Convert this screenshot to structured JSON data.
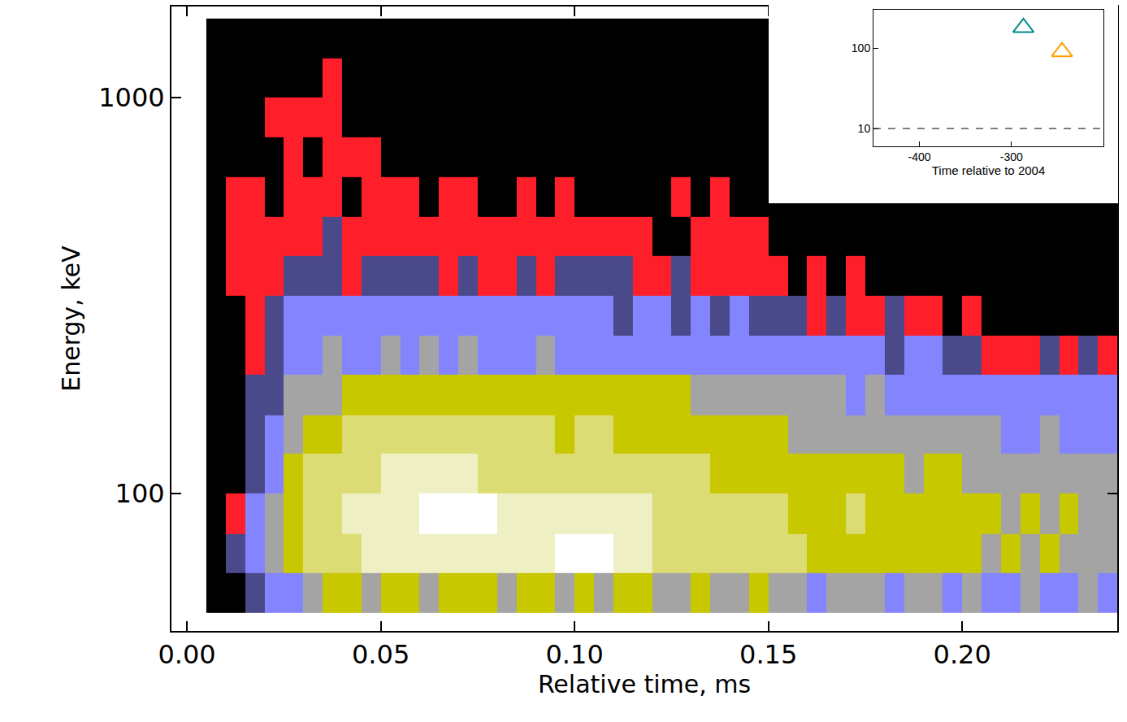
{
  "chart_data": [
    {
      "type": "heatmap",
      "x_label": "Relative time, ms",
      "y_label": "Energy, keV",
      "log": "y",
      "grid": false,
      "xlim": [
        -0.004,
        0.24
      ],
      "ylim": [
        45,
        1700
      ],
      "xticks": [
        {
          "value": 0,
          "label": "0.00"
        },
        {
          "value": 0.05,
          "label": "0.05"
        },
        {
          "value": 0.1,
          "label": "0.10"
        },
        {
          "value": 0.15,
          "label": "0.15"
        },
        {
          "value": 0.2,
          "label": "0.20"
        }
      ],
      "yticks": [
        100,
        1000
      ],
      "x_bins": [
        0.005,
        0.01,
        0.015,
        0.02,
        0.025,
        0.03,
        0.035,
        0.04,
        0.045,
        0.05,
        0.055,
        0.06,
        0.065,
        0.07,
        0.075,
        0.08,
        0.085,
        0.09,
        0.095,
        0.1,
        0.105,
        0.11,
        0.115,
        0.12,
        0.125,
        0.13,
        0.135,
        0.14,
        0.145,
        0.15,
        0.155,
        0.16,
        0.165,
        0.17,
        0.175,
        0.18,
        0.185,
        0.19,
        0.195,
        0.2,
        0.205,
        0.21,
        0.215,
        0.22,
        0.225,
        0.23,
        0.235,
        0.24
      ],
      "y_bins": [
        50,
        63,
        79,
        100,
        126,
        158,
        200,
        251,
        316,
        398,
        501,
        631,
        794,
        1000,
        1259,
        1585
      ],
      "cells": [
        [
          0,
          0,
          2,
          3,
          3,
          4,
          5,
          5,
          4,
          5,
          5,
          4,
          5,
          5,
          5,
          4,
          5,
          5,
          4,
          5,
          4,
          5,
          5,
          4,
          4,
          5,
          4,
          4,
          5,
          4,
          4,
          3,
          4,
          4,
          4,
          3,
          4,
          4,
          3,
          4,
          3,
          3,
          4,
          3,
          3,
          4,
          3
        ],
        [
          0,
          2,
          3,
          4,
          5,
          6,
          6,
          6,
          7,
          7,
          7,
          7,
          7,
          7,
          7,
          7,
          7,
          7,
          8,
          8,
          8,
          7,
          7,
          6,
          6,
          6,
          6,
          6,
          6,
          6,
          6,
          5,
          5,
          5,
          5,
          5,
          5,
          5,
          5,
          5,
          4,
          5,
          4,
          5,
          4,
          4,
          4
        ],
        [
          0,
          1,
          3,
          4,
          5,
          6,
          6,
          7,
          7,
          7,
          7,
          8,
          8,
          8,
          8,
          7,
          7,
          7,
          7,
          7,
          7,
          7,
          7,
          6,
          6,
          6,
          6,
          6,
          6,
          6,
          5,
          5,
          5,
          6,
          5,
          5,
          5,
          5,
          5,
          5,
          5,
          4,
          5,
          4,
          5,
          4,
          4
        ],
        [
          0,
          0,
          2,
          3,
          5,
          6,
          6,
          6,
          6,
          7,
          7,
          7,
          7,
          7,
          6,
          6,
          6,
          6,
          6,
          6,
          6,
          6,
          6,
          6,
          6,
          6,
          5,
          5,
          5,
          5,
          5,
          5,
          5,
          5,
          5,
          5,
          4,
          5,
          5,
          4,
          4,
          4,
          4,
          4,
          4,
          4,
          4
        ],
        [
          0,
          0,
          2,
          3,
          4,
          5,
          5,
          6,
          6,
          6,
          6,
          6,
          6,
          6,
          6,
          6,
          6,
          6,
          5,
          6,
          6,
          5,
          5,
          5,
          5,
          5,
          5,
          5,
          5,
          5,
          4,
          4,
          4,
          4,
          4,
          4,
          4,
          4,
          4,
          4,
          4,
          3,
          3,
          4,
          3,
          3,
          3
        ],
        [
          0,
          0,
          2,
          2,
          4,
          4,
          4,
          5,
          5,
          5,
          5,
          5,
          5,
          5,
          5,
          5,
          5,
          5,
          5,
          5,
          5,
          5,
          5,
          5,
          5,
          4,
          4,
          4,
          4,
          4,
          4,
          4,
          4,
          3,
          4,
          3,
          3,
          3,
          3,
          3,
          3,
          3,
          3,
          3,
          3,
          3,
          3
        ],
        [
          0,
          0,
          1,
          2,
          3,
          3,
          4,
          3,
          3,
          4,
          3,
          4,
          3,
          4,
          3,
          3,
          3,
          4,
          3,
          3,
          3,
          3,
          3,
          3,
          3,
          3,
          3,
          3,
          3,
          3,
          3,
          3,
          3,
          3,
          3,
          2,
          3,
          3,
          2,
          2,
          1,
          1,
          1,
          2,
          1,
          2,
          1
        ],
        [
          0,
          0,
          1,
          2,
          3,
          3,
          3,
          3,
          3,
          3,
          3,
          3,
          3,
          3,
          3,
          3,
          3,
          3,
          3,
          3,
          3,
          2,
          3,
          3,
          2,
          3,
          2,
          3,
          2,
          2,
          2,
          1,
          2,
          1,
          1,
          2,
          1,
          1,
          0,
          1,
          0,
          0,
          0,
          0,
          0,
          0,
          0
        ],
        [
          0,
          1,
          1,
          1,
          2,
          2,
          2,
          1,
          2,
          2,
          2,
          2,
          1,
          2,
          1,
          1,
          2,
          1,
          2,
          2,
          2,
          2,
          1,
          1,
          2,
          1,
          1,
          1,
          1,
          1,
          0,
          1,
          0,
          1,
          0,
          0,
          0,
          0,
          0,
          0,
          0,
          0,
          0,
          0,
          0,
          0,
          0
        ],
        [
          0,
          1,
          1,
          1,
          1,
          1,
          2,
          1,
          1,
          1,
          1,
          1,
          1,
          1,
          1,
          1,
          1,
          1,
          1,
          1,
          1,
          1,
          1,
          0,
          0,
          1,
          1,
          1,
          1,
          0,
          0,
          0,
          0,
          0,
          0,
          0,
          0,
          0,
          0,
          0,
          0,
          0,
          0,
          0,
          0,
          0,
          0
        ],
        [
          0,
          1,
          1,
          0,
          1,
          1,
          1,
          0,
          1,
          1,
          1,
          0,
          1,
          1,
          0,
          0,
          1,
          0,
          1,
          0,
          0,
          0,
          0,
          0,
          1,
          0,
          1,
          0,
          0,
          0,
          0,
          0,
          0,
          0,
          0,
          0,
          0,
          0,
          0,
          0,
          0,
          0,
          0,
          0,
          0,
          0,
          0
        ],
        [
          0,
          0,
          0,
          0,
          1,
          0,
          1,
          1,
          1,
          0,
          0,
          0,
          0,
          0,
          0,
          0,
          0,
          0,
          0,
          0,
          0,
          0,
          0,
          0,
          0,
          0,
          0,
          0,
          0,
          0,
          0,
          0,
          0,
          0,
          0,
          0,
          0,
          0,
          0,
          0,
          0,
          0,
          0,
          0,
          0,
          0,
          0
        ],
        [
          0,
          0,
          0,
          1,
          1,
          1,
          1,
          0,
          0,
          0,
          0,
          0,
          0,
          0,
          0,
          0,
          0,
          0,
          0,
          0,
          0,
          0,
          0,
          0,
          0,
          0,
          0,
          0,
          0,
          0,
          0,
          0,
          0,
          0,
          0,
          0,
          0,
          0,
          0,
          0,
          0,
          0,
          0,
          0,
          0,
          0,
          0
        ],
        [
          0,
          0,
          0,
          0,
          0,
          0,
          1,
          0,
          0,
          0,
          0,
          0,
          0,
          0,
          0,
          0,
          0,
          0,
          0,
          0,
          0,
          0,
          0,
          0,
          0,
          0,
          0,
          0,
          0,
          0,
          0,
          0,
          0,
          0,
          0,
          0,
          0,
          0,
          0,
          0,
          0,
          0,
          0,
          0,
          0,
          0,
          0
        ],
        [
          0,
          0,
          0,
          0,
          0,
          0,
          0,
          0,
          0,
          0,
          0,
          0,
          0,
          0,
          0,
          0,
          0,
          0,
          0,
          0,
          0,
          0,
          0,
          0,
          0,
          0,
          0,
          0,
          0,
          0,
          0,
          0,
          0,
          0,
          0,
          0,
          0,
          0,
          0,
          0,
          0,
          0,
          0,
          0,
          0,
          0,
          0
        ]
      ]
    },
    {
      "type": "scatter",
      "x_label": "Time relative to 2004",
      "log": "y",
      "grid": false,
      "xlim": [
        -450,
        -200
      ],
      "ylim": [
        6,
        300
      ],
      "xticks": [
        -400,
        -300
      ],
      "yticks": [
        10,
        100
      ],
      "reference_line": {
        "y": 10,
        "line_style": "dashed"
      },
      "series": [
        {
          "color": "#008b8b",
          "marker": "triangle-up-open",
          "x": [
            -287
          ],
          "values": [
            180
          ]
        },
        {
          "color": "#ffa000",
          "marker": "triangle-up-open",
          "x": [
            -245
          ],
          "values": [
            90
          ]
        }
      ]
    }
  ]
}
